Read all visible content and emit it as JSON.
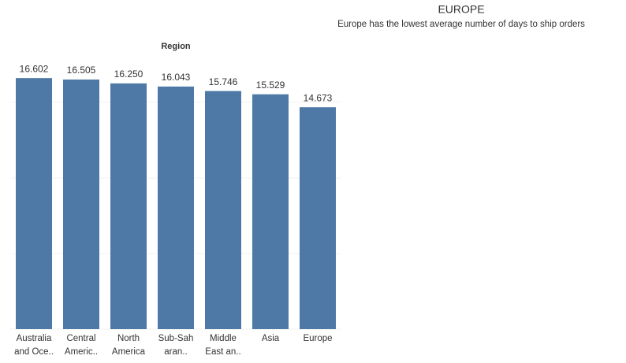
{
  "chart_data": {
    "type": "bar",
    "title": "EUROPE",
    "subtitle": "Europe has the lowest average number of days to ship orders",
    "x_header": "Region",
    "categories": [
      [
        "Australia",
        "and Oce.."
      ],
      [
        "Central",
        "Americ.."
      ],
      [
        "North",
        "America"
      ],
      [
        "Sub-Sah",
        "aran.."
      ],
      [
        "Middle",
        "East an.."
      ],
      [
        "Asia"
      ],
      [
        "Europe"
      ]
    ],
    "values": [
      16.602,
      16.505,
      16.25,
      16.043,
      15.746,
      15.529,
      14.673
    ],
    "value_labels": [
      "16.602",
      "16.505",
      "16.250",
      "16.043",
      "15.746",
      "15.529",
      "14.673"
    ],
    "color": "#4e79a7",
    "ylim": [
      0,
      17.6
    ],
    "yticks": [
      0,
      5,
      10,
      15
    ],
    "grid": true
  }
}
